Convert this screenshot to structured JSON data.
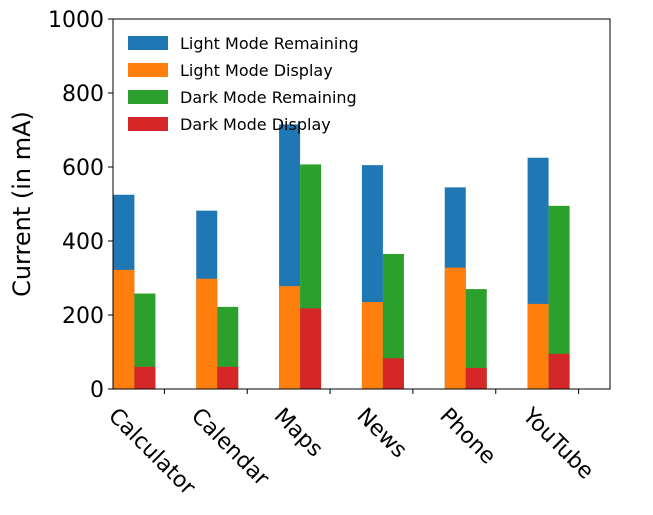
{
  "chart_data": {
    "type": "bar",
    "stacked_groups": true,
    "categories": [
      "Calculator",
      "Calendar",
      "Maps",
      "News",
      "Phone",
      "YouTube"
    ],
    "series": [
      {
        "name": "Light Mode Remaining",
        "group": "light",
        "color": "#1f77b4",
        "values": [
          525,
          482,
          715,
          605,
          545,
          625
        ]
      },
      {
        "name": "Light Mode Display",
        "group": "light",
        "color": "#ff7f0e",
        "values": [
          322,
          298,
          278,
          235,
          328,
          230
        ]
      },
      {
        "name": "Dark Mode Remaining",
        "group": "dark",
        "color": "#2ca02c",
        "values": [
          258,
          222,
          607,
          365,
          270,
          495
        ]
      },
      {
        "name": "Dark Mode Display",
        "group": "dark",
        "color": "#d62728",
        "values": [
          60,
          60,
          218,
          83,
          57,
          95
        ]
      }
    ],
    "note_values": "Remaining values are bar tops; Display values overlap from zero",
    "ylabel": "Current (in mA)",
    "xlabel": "",
    "ylim": [
      0,
      1000
    ],
    "yticks": [
      0,
      200,
      400,
      600,
      800,
      1000
    ],
    "xtick_rotation": -45,
    "grid": false,
    "legend_position": "upper-left"
  }
}
